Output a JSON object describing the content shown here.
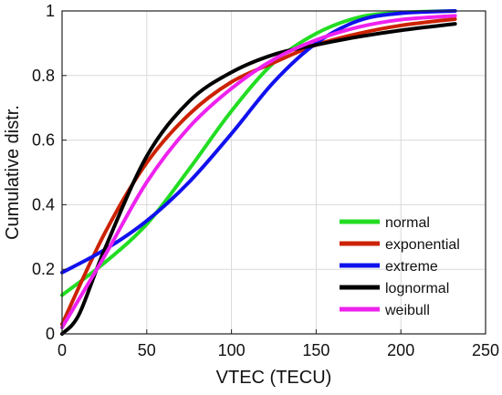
{
  "chart_data": {
    "type": "line",
    "xlabel": "VTEC (TECU)",
    "ylabel": "Cumulative distr.",
    "xlim": [
      0,
      250
    ],
    "ylim": [
      0,
      1
    ],
    "xticks": [
      0,
      50,
      100,
      150,
      200,
      250
    ],
    "yticks": [
      0,
      0.2,
      0.4,
      0.6,
      0.8,
      1
    ],
    "xtick_labels": [
      "0",
      "50",
      "100",
      "150",
      "200",
      "250"
    ],
    "ytick_labels": [
      "0",
      "0.2",
      "0.4",
      "0.6",
      "0.8",
      "1"
    ],
    "grid": true,
    "legend_position": "lower-right",
    "series": [
      {
        "name": "normal",
        "color": "#22dd22",
        "x": [
          0,
          25,
          50,
          75,
          100,
          125,
          150,
          175,
          200,
          232
        ],
        "y": [
          0.12,
          0.22,
          0.34,
          0.51,
          0.69,
          0.84,
          0.93,
          0.98,
          0.995,
          1.0
        ]
      },
      {
        "name": "exponential",
        "color": "#cc2200",
        "x": [
          0,
          25,
          50,
          75,
          100,
          125,
          150,
          175,
          200,
          232
        ],
        "y": [
          0.03,
          0.31,
          0.53,
          0.68,
          0.78,
          0.84,
          0.895,
          0.93,
          0.955,
          0.975
        ]
      },
      {
        "name": "extreme",
        "color": "#1111ee",
        "x": [
          0,
          25,
          50,
          75,
          100,
          125,
          150,
          175,
          200,
          232
        ],
        "y": [
          0.19,
          0.26,
          0.35,
          0.47,
          0.62,
          0.78,
          0.9,
          0.97,
          0.993,
          1.0
        ]
      },
      {
        "name": "lognormal",
        "color": "#000000",
        "x": [
          0,
          10,
          25,
          50,
          75,
          100,
          125,
          150,
          175,
          200,
          232
        ],
        "y": [
          0.0,
          0.06,
          0.26,
          0.55,
          0.72,
          0.81,
          0.865,
          0.895,
          0.92,
          0.94,
          0.96
        ]
      },
      {
        "name": "weibull",
        "color": "#ee22ee",
        "x": [
          0,
          25,
          50,
          75,
          100,
          125,
          150,
          175,
          200,
          232
        ],
        "y": [
          0.02,
          0.24,
          0.47,
          0.64,
          0.76,
          0.85,
          0.91,
          0.95,
          0.973,
          0.985
        ]
      }
    ]
  }
}
